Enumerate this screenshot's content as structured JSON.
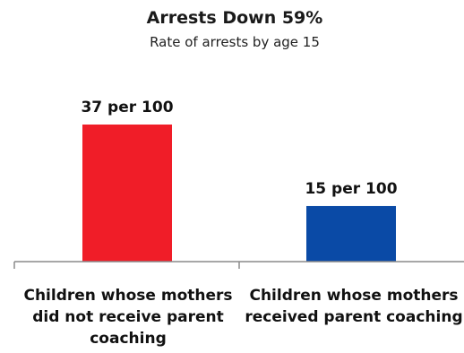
{
  "chart_data": {
    "type": "bar",
    "title": "Arrests Down 59%",
    "subtitle": "Rate of arrests by age 15",
    "categories": [
      [
        "Children whose mothers",
        "did not receive parent",
        "coaching"
      ],
      [
        "Children whose mothers",
        "received parent coaching"
      ]
    ],
    "values": [
      37,
      15
    ],
    "data_labels": [
      "37 per 100",
      "15 per 100"
    ],
    "colors": [
      "#f01d28",
      "#0a4aa6"
    ],
    "ylim": [
      0,
      37
    ],
    "grid": false,
    "legend": "none"
  }
}
